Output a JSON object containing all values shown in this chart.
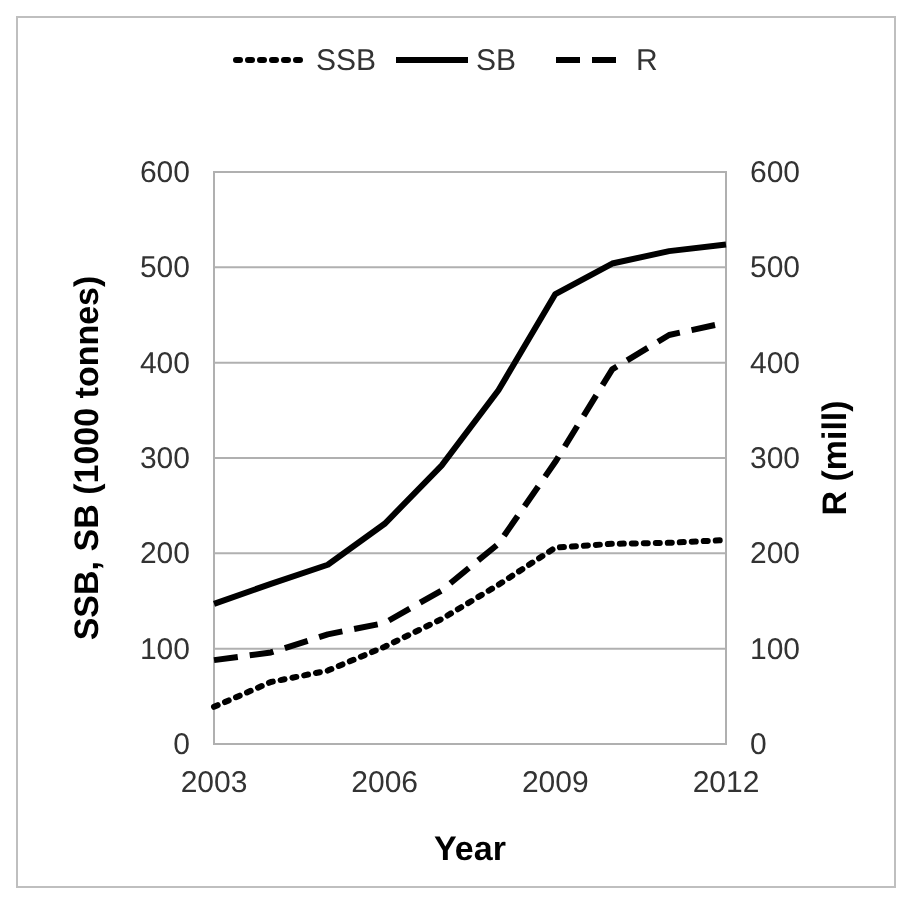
{
  "chart_data": {
    "type": "line",
    "xlabel": "Year",
    "ylabel": "SSB, SB (1000 tonnes)",
    "y2label": "R (mill)",
    "x": [
      2003,
      2004,
      2005,
      2006,
      2007,
      2008,
      2009,
      2010,
      2011,
      2012
    ],
    "series": [
      {
        "name": "SSB",
        "color": "#000000",
        "line_style": "dotted",
        "values": [
          39,
          65,
          77,
          102,
          131,
          167,
          206,
          210,
          211,
          214
        ]
      },
      {
        "name": "SB",
        "color": "#000000",
        "line_style": "solid",
        "values": [
          147,
          168,
          188,
          231,
          292,
          371,
          472,
          504,
          517,
          524
        ]
      },
      {
        "name": "R",
        "color": "#000000",
        "line_style": "dashed",
        "axis": "y2",
        "values": [
          88,
          96,
          115,
          127,
          161,
          210,
          296,
          393,
          429,
          442
        ]
      }
    ],
    "xlim": [
      2003,
      2012
    ],
    "xticks": [
      2003,
      2006,
      2009,
      2012
    ],
    "ylim": [
      0,
      600
    ],
    "yticks": [
      0,
      100,
      200,
      300,
      400,
      500,
      600
    ],
    "y2lim": [
      0,
      600
    ],
    "y2ticks": [
      0,
      100,
      200,
      300,
      400,
      500,
      600
    ],
    "grid": "y",
    "legend": "top",
    "marker": "none"
  }
}
